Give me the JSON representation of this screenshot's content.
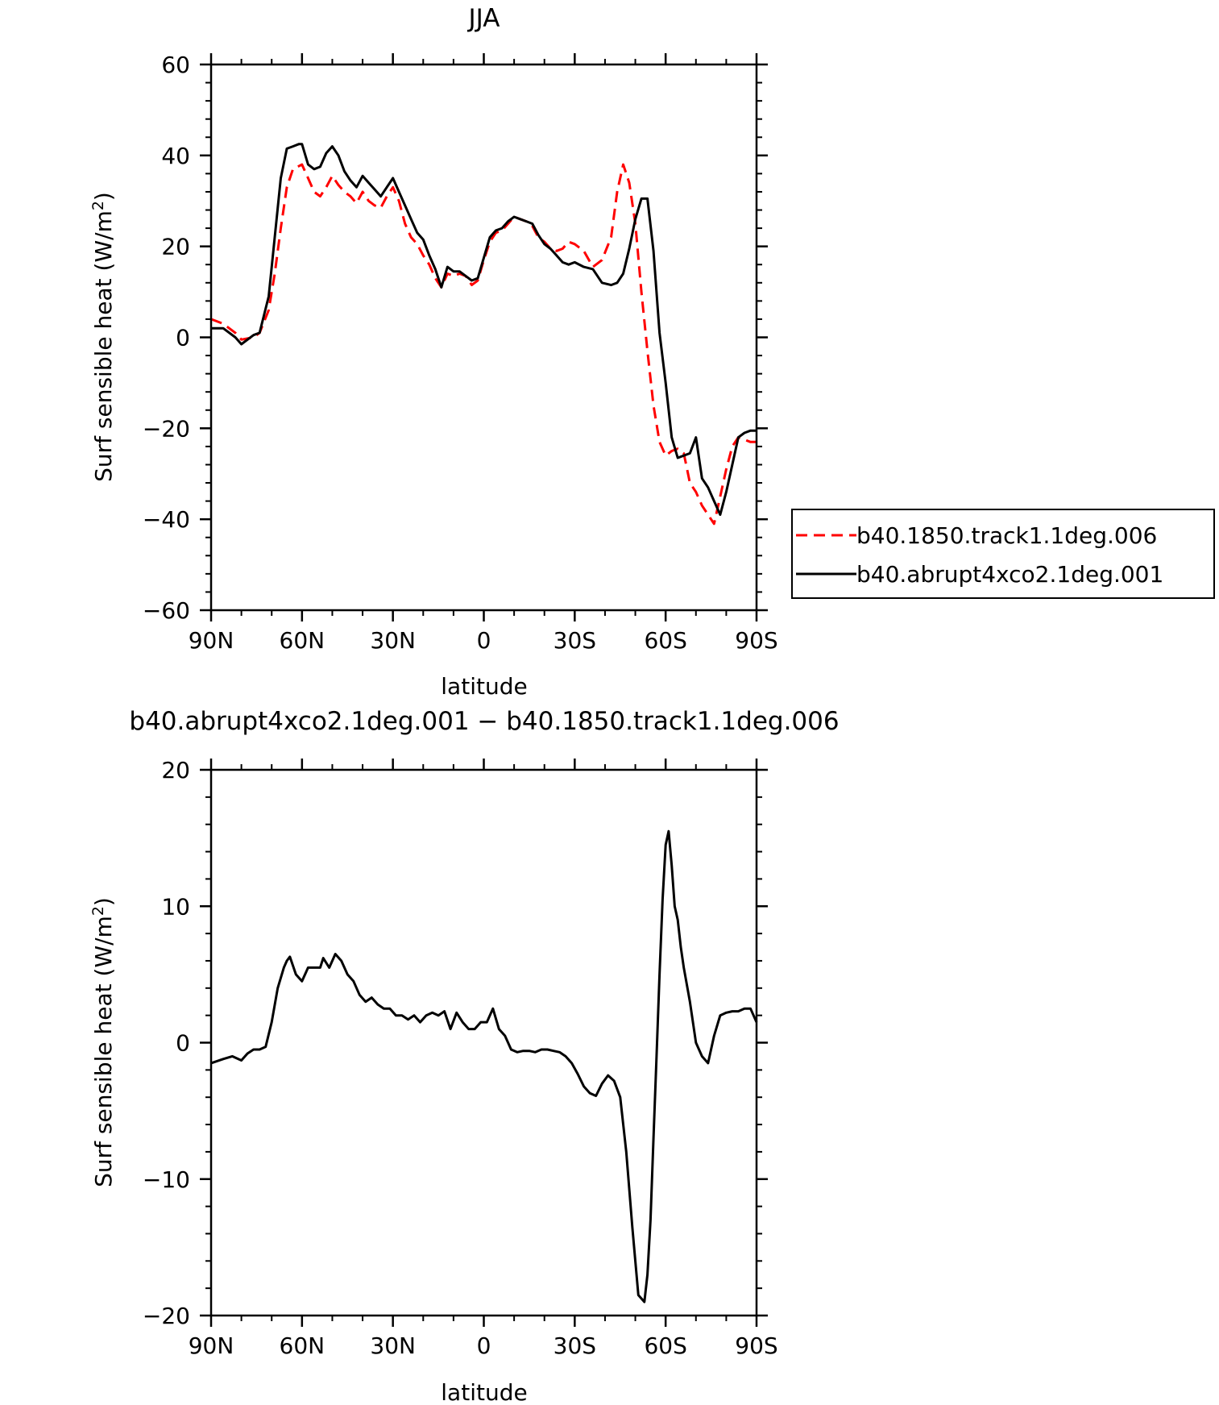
{
  "chart_data": [
    {
      "type": "line",
      "title": "JJA",
      "xlabel": "latitude",
      "ylabel": "Surf sensible heat (W/m²)",
      "ylabel_main": "Surf sensible heat (W/m",
      "ylabel_sup": "2",
      "ylabel_close": ")",
      "xlim": [
        90,
        -90
      ],
      "ylim": [
        -60,
        60
      ],
      "x_ticks": [
        90,
        60,
        30,
        0,
        -30,
        -60,
        -90
      ],
      "x_tick_labels": [
        "90N",
        "60N",
        "30N",
        "0",
        "30S",
        "60S",
        "90S"
      ],
      "y_ticks": [
        60,
        40,
        20,
        0,
        -20,
        -40,
        -60
      ],
      "y_tick_labels": [
        "60",
        "40",
        "20",
        "0",
        "−20",
        "−40",
        "−60"
      ],
      "legend": {
        "placement": "right",
        "frame": true
      },
      "series": [
        {
          "name": "b40.1850.track1.1deg.006",
          "color": "#ff0000",
          "dash": "dashed",
          "x": [
            90,
            86,
            82,
            80,
            76,
            74,
            71,
            69,
            67,
            65,
            63,
            60,
            58,
            56,
            54,
            52,
            50,
            48,
            46,
            44,
            42,
            40,
            38,
            36,
            34,
            32,
            30,
            28,
            26,
            24,
            22,
            20,
            18,
            16,
            14,
            12,
            10,
            8,
            6,
            4,
            2,
            0,
            -2,
            -4,
            -6,
            -8,
            -10,
            -12,
            -14,
            -16,
            -18,
            -20,
            -22,
            -24,
            -26,
            -28,
            -30,
            -33,
            -36,
            -39,
            -42,
            -44,
            -46,
            -48,
            -50,
            -52,
            -54,
            -56,
            -58,
            -60,
            -62,
            -64,
            -66,
            -68,
            -70,
            -72,
            -74,
            -76,
            -78,
            -80,
            -82,
            -84,
            -86,
            -88,
            -90
          ],
          "y": [
            4.0,
            3.0,
            1.0,
            -0.5,
            0.0,
            1.0,
            6.0,
            14.0,
            24.0,
            33.0,
            37.0,
            38.0,
            35.0,
            32.0,
            31.0,
            33.0,
            35.5,
            33.5,
            32.0,
            31.0,
            29.5,
            32.0,
            30.0,
            29.0,
            28.5,
            31.0,
            33.0,
            30.0,
            25.0,
            22.0,
            20.5,
            18.0,
            16.0,
            13.0,
            11.0,
            14.0,
            13.5,
            14.0,
            13.5,
            11.5,
            12.5,
            17.0,
            21.0,
            23.0,
            23.5,
            25.0,
            26.5,
            26.0,
            25.5,
            24.5,
            22.0,
            21.0,
            19.5,
            19.0,
            19.5,
            21.0,
            20.5,
            19.0,
            15.5,
            17.0,
            22.0,
            32.0,
            38.0,
            34.0,
            25.0,
            10.0,
            -3.0,
            -15.0,
            -23.0,
            -26.0,
            -25.0,
            -24.5,
            -25.5,
            -32.0,
            -34.0,
            -37.0,
            -39.0,
            -41.0,
            -35.0,
            -29.0,
            -24.0,
            -22.0,
            -22.5,
            -23.0,
            -23.0
          ]
        },
        {
          "name": "b40.abrupt4xco2.1deg.001",
          "color": "#000000",
          "dash": "solid",
          "x": [
            90,
            86,
            82,
            80,
            76,
            74,
            71,
            69,
            67,
            65,
            63,
            61,
            60,
            58,
            56,
            54,
            52,
            50,
            48,
            46,
            44,
            42,
            40,
            38,
            36,
            34,
            32,
            30,
            28,
            26,
            24,
            22,
            20,
            18,
            16,
            14,
            12,
            10,
            8,
            6,
            4,
            2,
            0,
            -2,
            -4,
            -6,
            -8,
            -10,
            -12,
            -14,
            -16,
            -18,
            -20,
            -22,
            -24,
            -26,
            -28,
            -30,
            -33,
            -36,
            -39,
            -42,
            -44,
            -46,
            -48,
            -50,
            -52,
            -54,
            -56,
            -58,
            -60,
            -62,
            -64,
            -66,
            -68,
            -70,
            -72,
            -74,
            -76,
            -78,
            -80,
            -82,
            -84,
            -86,
            -88,
            -90
          ],
          "y": [
            2.0,
            2.0,
            0.0,
            -1.5,
            0.5,
            1.0,
            9.0,
            22.0,
            35.0,
            41.5,
            42.0,
            42.5,
            42.5,
            38.0,
            37.0,
            37.5,
            40.5,
            42.0,
            40.0,
            36.5,
            34.5,
            33.0,
            35.5,
            34.0,
            32.5,
            31.0,
            33.0,
            35.0,
            32.0,
            29.0,
            26.0,
            23.0,
            21.5,
            18.0,
            15.0,
            11.0,
            15.5,
            14.5,
            14.5,
            13.5,
            12.5,
            13.0,
            17.5,
            22.0,
            23.5,
            24.0,
            25.5,
            26.5,
            26.0,
            25.5,
            25.0,
            22.5,
            20.5,
            19.5,
            18.0,
            16.5,
            16.0,
            16.5,
            15.5,
            15.0,
            12.0,
            11.5,
            12.0,
            14.0,
            19.5,
            26.0,
            30.5,
            30.5,
            19.0,
            1.0,
            -10.0,
            -22.0,
            -26.5,
            -26.0,
            -25.5,
            -22.0,
            -31.0,
            -33.0,
            -36.0,
            -39.0,
            -34.0,
            -28.0,
            -22.0,
            -21.0,
            -20.5,
            -20.5
          ]
        }
      ]
    },
    {
      "type": "line",
      "title": "b40.abrupt4xco2.1deg.001 − b40.1850.track1.1deg.006",
      "xlabel": "latitude",
      "ylabel": "Surf sensible heat (W/m²)",
      "ylabel_main": "Surf sensible heat (W/m",
      "ylabel_sup": "2",
      "ylabel_close": ")",
      "xlim": [
        90,
        -90
      ],
      "ylim": [
        -20,
        20
      ],
      "x_ticks": [
        90,
        60,
        30,
        0,
        -30,
        -60,
        -90
      ],
      "x_tick_labels": [
        "90N",
        "60N",
        "30N",
        "0",
        "30S",
        "60S",
        "90S"
      ],
      "y_ticks": [
        20,
        10,
        0,
        -10,
        -20
      ],
      "y_tick_labels": [
        "20",
        "10",
        "0",
        "−10",
        "−20"
      ],
      "series": [
        {
          "color": "#000000",
          "dash": "solid",
          "x": [
            90,
            86,
            83,
            80,
            78,
            76,
            74,
            72,
            70,
            68,
            66,
            65,
            64,
            62,
            60,
            58,
            56,
            54,
            53,
            51,
            49,
            47,
            45,
            43,
            41,
            39,
            37,
            35,
            33,
            31,
            29,
            27,
            25,
            23,
            21,
            19,
            17,
            15,
            13,
            11,
            9,
            7,
            5,
            3,
            1,
            -1,
            -3,
            -5,
            -7,
            -9,
            -11,
            -13,
            -15,
            -17,
            -19,
            -21,
            -23,
            -25,
            -27,
            -29,
            -31,
            -33,
            -35,
            -37,
            -39,
            -41,
            -43,
            -45,
            -47,
            -49,
            -51,
            -53,
            -54,
            -55,
            -56,
            -57,
            -58,
            -59,
            -60,
            -61,
            -62,
            -63,
            -64,
            -65,
            -66,
            -68,
            -70,
            -72,
            -74,
            -76,
            -78,
            -80,
            -82,
            -84,
            -86,
            -88,
            -90
          ],
          "y": [
            -1.5,
            -1.2,
            -1.0,
            -1.3,
            -0.8,
            -0.5,
            -0.5,
            -0.3,
            1.5,
            4.0,
            5.5,
            6.0,
            6.3,
            5.0,
            4.5,
            5.5,
            5.5,
            5.5,
            6.2,
            5.5,
            6.5,
            6.0,
            5.0,
            4.5,
            3.5,
            3.0,
            3.3,
            2.8,
            2.5,
            2.5,
            2.0,
            2.0,
            1.7,
            2.0,
            1.5,
            2.0,
            2.2,
            2.0,
            2.3,
            1.0,
            2.2,
            1.5,
            1.0,
            1.0,
            1.5,
            1.5,
            2.5,
            1.0,
            0.5,
            -0.5,
            -0.7,
            -0.6,
            -0.6,
            -0.7,
            -0.5,
            -0.5,
            -0.6,
            -0.7,
            -1.0,
            -1.5,
            -2.3,
            -3.2,
            -3.7,
            -3.9,
            -3.0,
            -2.4,
            -2.8,
            -4.0,
            -8.0,
            -13.5,
            -18.5,
            -19.0,
            -17.0,
            -13.0,
            -7.0,
            -1.0,
            5.0,
            10.5,
            14.5,
            15.5,
            13.0,
            10.0,
            9.0,
            7.0,
            5.5,
            3.0,
            0.0,
            -1.0,
            -1.5,
            0.5,
            2.0,
            2.2,
            2.3,
            2.3,
            2.5,
            2.5,
            1.5
          ]
        }
      ]
    }
  ]
}
